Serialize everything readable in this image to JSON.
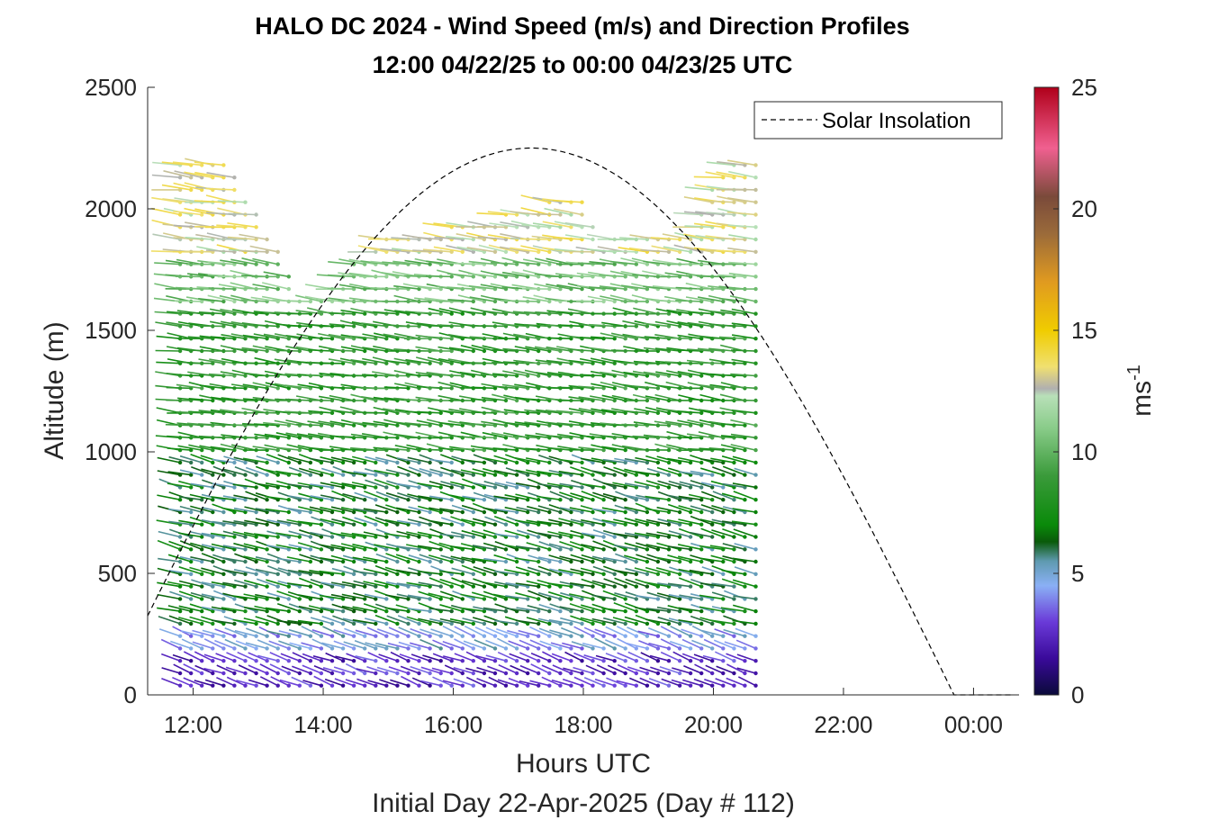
{
  "chart_data": {
    "type": "wind_barb_profile",
    "title": "HALO DC 2024 - Wind Speed (m/s) and Direction Profiles",
    "subtitle": "12:00 04/22/25 to 00:00 04/23/25  UTC",
    "xlabel": "Hours UTC",
    "xlabel2": "Initial Day 22-Apr-2025 (Day # 112)",
    "ylabel": "Altitude (m)",
    "xlim": [
      11.3,
      24.7
    ],
    "ylim": [
      0,
      2500
    ],
    "x_ticks": [
      {
        "value": 12,
        "label": "12:00"
      },
      {
        "value": 14,
        "label": "14:00"
      },
      {
        "value": 16,
        "label": "16:00"
      },
      {
        "value": 18,
        "label": "18:00"
      },
      {
        "value": 20,
        "label": "20:00"
      },
      {
        "value": 22,
        "label": "22:00"
      },
      {
        "value": 24,
        "label": "00:00"
      }
    ],
    "y_ticks": [
      0,
      500,
      1000,
      1500,
      2000,
      2500
    ],
    "y_tick_labels": [
      "0",
      "500",
      "1000",
      "1500",
      "2000",
      "2500"
    ],
    "legend": {
      "entry": "Solar Insolation",
      "placement": "top-right",
      "style": "dashed-black"
    },
    "colorbar": {
      "label": "ms",
      "label_superscript": "-1",
      "range": [
        0,
        25
      ],
      "ticks": [
        0,
        5,
        10,
        15,
        20,
        25
      ],
      "tick_labels": [
        "0",
        "5",
        "10",
        "15",
        "20",
        "25"
      ],
      "stops": [
        {
          "v": 0,
          "c": "#0a0a3a"
        },
        {
          "v": 1.5,
          "c": "#3a0a9a"
        },
        {
          "v": 3,
          "c": "#6a3ad8"
        },
        {
          "v": 4.5,
          "c": "#8ab0f5"
        },
        {
          "v": 5.5,
          "c": "#5f9ab0"
        },
        {
          "v": 6.3,
          "c": "#0a5a0a"
        },
        {
          "v": 7,
          "c": "#0a8a0a"
        },
        {
          "v": 9,
          "c": "#3a9a3a"
        },
        {
          "v": 11,
          "c": "#8acc8a"
        },
        {
          "v": 12.3,
          "c": "#b8e0b8"
        },
        {
          "v": 12.6,
          "c": "#b0b0b0"
        },
        {
          "v": 13.5,
          "c": "#f0e070"
        },
        {
          "v": 15,
          "c": "#f0cc00"
        },
        {
          "v": 17,
          "c": "#e09a20"
        },
        {
          "v": 19,
          "c": "#9a6a3a"
        },
        {
          "v": 20.5,
          "c": "#7a4a3a"
        },
        {
          "v": 22.5,
          "c": "#f06090"
        },
        {
          "v": 25,
          "c": "#b0001a"
        }
      ]
    },
    "solar_insolation": {
      "peak_hour": 17.2,
      "peak_altitude": 2250,
      "zero_hours": [
        10.7,
        23.7
      ],
      "trail_end_hour": 24.65
    },
    "profiles": {
      "start_hour": 11.8,
      "end_hour": 20.8,
      "step_hours": 0.167,
      "altitude_step_m": 51,
      "min_altitude_m": 38,
      "note": "Each time column holds a vertical stack of wind vectors from ~40 m up to the top altitude of that profile."
    },
    "profile_tops": [
      {
        "h": 11.8,
        "top": 2180
      },
      {
        "h": 12.5,
        "top": 2220
      },
      {
        "h": 13.3,
        "top": 1830
      },
      {
        "h": 13.6,
        "top": 1660
      },
      {
        "h": 14.0,
        "top": 1640
      },
      {
        "h": 14.3,
        "top": 1730
      },
      {
        "h": 14.9,
        "top": 1880
      },
      {
        "h": 15.5,
        "top": 1890
      },
      {
        "h": 16.0,
        "top": 1930
      },
      {
        "h": 16.5,
        "top": 1960
      },
      {
        "h": 17.0,
        "top": 2000
      },
      {
        "h": 17.5,
        "top": 2030
      },
      {
        "h": 18.0,
        "top": 2030
      },
      {
        "h": 18.3,
        "top": 1870
      },
      {
        "h": 19.0,
        "top": 1910
      },
      {
        "h": 19.6,
        "top": 1900
      },
      {
        "h": 20.0,
        "top": 2090
      },
      {
        "h": 20.4,
        "top": 2220
      },
      {
        "h": 20.8,
        "top": 2220
      }
    ],
    "speed_bands": [
      {
        "alt_max": 150,
        "speed": 2.5
      },
      {
        "alt_max": 250,
        "speed": 4.5
      },
      {
        "alt_max": 1000,
        "speed": 6.5
      },
      {
        "alt_max": 1600,
        "speed": 8.5
      },
      {
        "alt_max": 1800,
        "speed": 10.5
      },
      {
        "alt_max": 2500,
        "speed": 13
      }
    ]
  }
}
